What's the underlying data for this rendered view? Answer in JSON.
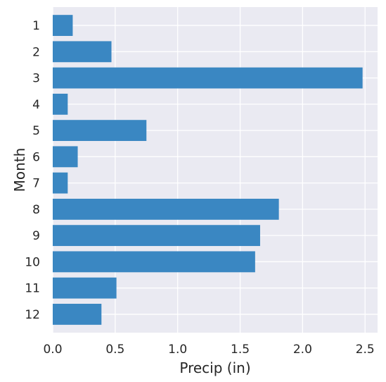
{
  "colors": {
    "background": "#eaeaf2",
    "grid": "#ffffff",
    "bar": "#3a87c2",
    "text": "#262626"
  },
  "chart_data": {
    "type": "bar",
    "orientation": "horizontal",
    "title": "",
    "xlabel": "Precip (in)",
    "ylabel": "Month",
    "categories": [
      "1",
      "2",
      "3",
      "4",
      "5",
      "6",
      "7",
      "8",
      "9",
      "10",
      "11",
      "12"
    ],
    "values": [
      0.16,
      0.47,
      2.48,
      0.12,
      0.75,
      0.2,
      0.12,
      1.81,
      1.66,
      1.62,
      0.51,
      0.39
    ],
    "xlim": [
      0,
      2.6
    ],
    "xticks": [
      "0.0",
      "0.5",
      "1.0",
      "1.5",
      "2.0",
      "2.5"
    ],
    "grid": true,
    "legend": "none"
  }
}
